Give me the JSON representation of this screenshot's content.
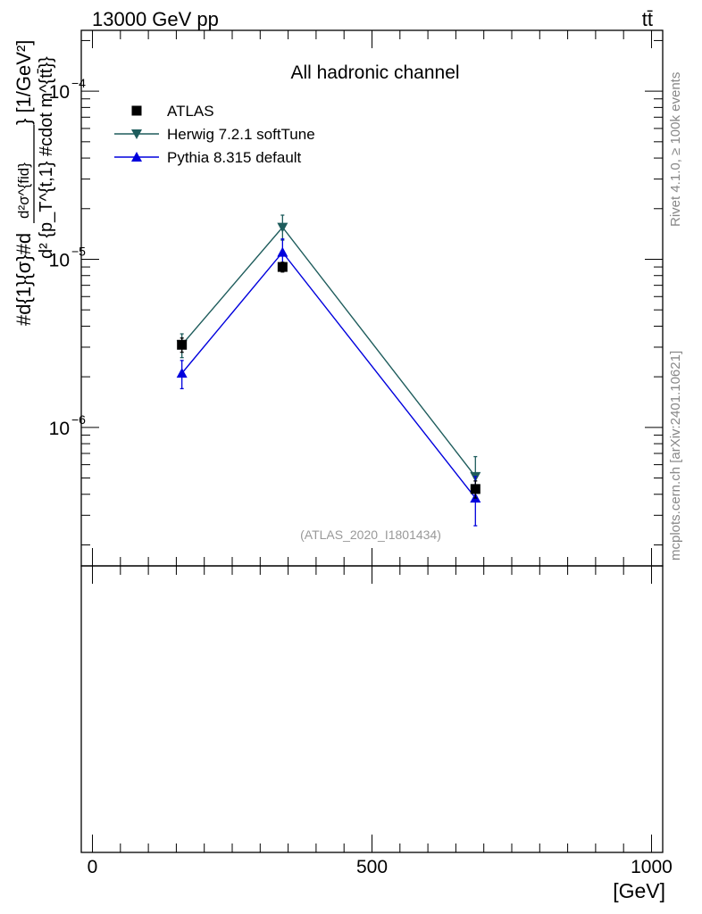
{
  "header": {
    "energy_label": "13000 GeV pp",
    "process_label": "tt̄"
  },
  "side_labels": {
    "rivet": "Rivet 4.1.0, ≥ 100k events",
    "mcplots": "mcplots.cern.ch [arXiv:2401.10621]"
  },
  "chart_data": {
    "type": "line",
    "title": "All hadronic channel",
    "watermark": "(ATLAS_2020_I1801434)",
    "ylabel_parts": {
      "frac": "#d{1}{σ}#d",
      "numer": "d²σ^{fid}",
      "denom": "d² {p_T^{t,1} #cdot m^{tt̄}}",
      "unit": "} [1/GeV²]"
    },
    "xlabel": "[GeV]",
    "x_scale": "linear",
    "y_scale": "log",
    "xlim": [
      -20,
      1020
    ],
    "ylim": [
      1.5e-07,
      0.00023
    ],
    "x_ticks": [
      0,
      500,
      1000
    ],
    "x_tick_labels": [
      "0",
      "500",
      "1000"
    ],
    "y_ticks": [
      1e-06,
      1e-05,
      0.0001
    ],
    "y_tick_labels": [
      {
        "base": "10",
        "exp": "−6"
      },
      {
        "base": "10",
        "exp": "−5"
      },
      {
        "base": "10",
        "exp": "−4"
      }
    ],
    "legend_position": "top-left",
    "series": [
      {
        "name": "ATLAS",
        "color": "#000000",
        "marker": "square",
        "line": false,
        "x": [
          160,
          340,
          685
        ],
        "y": [
          3.1e-06,
          9e-06,
          4.3e-07
        ],
        "yerr_low": [
          3e-07,
          6e-07,
          5e-08
        ],
        "yerr_high": [
          3e-07,
          6e-07,
          5e-08
        ]
      },
      {
        "name": "Herwig 7.2.1 softTune",
        "color": "#1e5c5c",
        "marker": "triangle-down",
        "line": true,
        "x": [
          160,
          340,
          685
        ],
        "y": [
          3.1e-06,
          1.55e-05,
          5.1e-07
        ],
        "yerr_low": [
          5e-07,
          2.5e-06,
          1.2e-07
        ],
        "yerr_high": [
          5e-07,
          2.8e-06,
          1.6e-07
        ]
      },
      {
        "name": "Pythia 8.315 default",
        "color": "#0000dd",
        "marker": "triangle-up",
        "line": true,
        "x": [
          160,
          340,
          685
        ],
        "y": [
          2.1e-06,
          1.1e-05,
          3.8e-07
        ],
        "yerr_low": [
          4e-07,
          2e-06,
          1.2e-07
        ],
        "yerr_high": [
          4e-07,
          2.2e-06,
          1.3e-07
        ]
      }
    ]
  }
}
